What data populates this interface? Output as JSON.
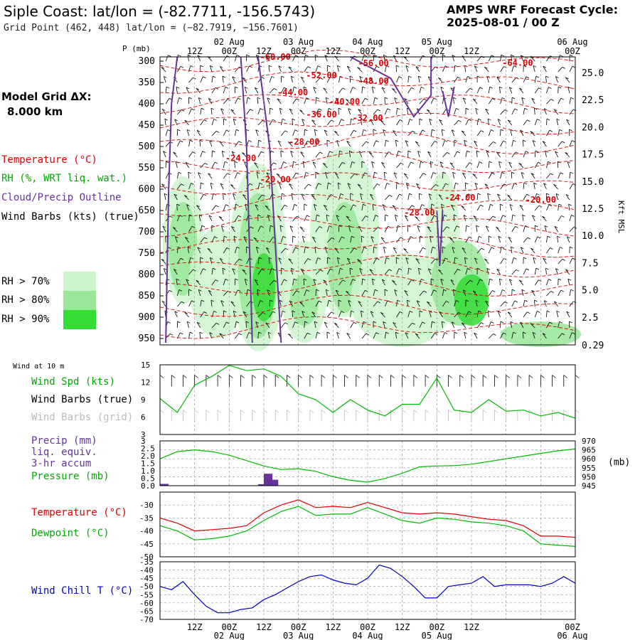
{
  "header": {
    "title": "Siple Coast:  lat/lon = (-82.7711, -156.5743)",
    "grid_point": "Grid Point (462, 448) lat/lon = (−82.7919, −156.7601)",
    "forecast_label": "AMPS WRF Forecast Cycle:",
    "forecast_cycle": "2025-08-01 / 00  Z"
  },
  "legend": {
    "grid_label": "Model Grid ΔX:",
    "grid_value": "8.000 km",
    "temperature": "Temperature (°C)",
    "rh": "RH (%, WRT liq. wat.)",
    "cloud": "Cloud/Precip Outline",
    "wind": "Wind Barbs (kts) (true)",
    "rh70": "RH > 70%",
    "rh80": "RH > 80%",
    "rh90": "RH > 90%"
  },
  "colors": {
    "temp": "#e00000",
    "rh70": "#ccf5cc",
    "rh80": "#99e699",
    "rh90": "#33dd33",
    "cloud": "#663399",
    "wind": "#000000",
    "green": "#00bb00",
    "blue": "#0000cc",
    "grid": "#999999"
  },
  "time_axis": {
    "hour_labels": [
      "12Z",
      "00Z",
      "12Z",
      "00Z",
      "12Z",
      "00Z",
      "12Z",
      "00Z",
      "12Z",
      "00Z"
    ],
    "date_labels": [
      "02 Aug",
      "03 Aug",
      "04 Aug",
      "05 Aug",
      "06 Aug"
    ]
  },
  "panels": {
    "p_unit": "P (mb)",
    "kft_label": "Kft MSL",
    "wind10m_title": "Wind at 10 m",
    "wind_spd": "Wind Spd (kts)",
    "wind_barbs_true": "Wind Barbs (true)",
    "wind_barbs_grid": "Wind Barbs (grid)",
    "precip1": "Precip (mm)",
    "precip2": "liq. equiv.",
    "precip3": "3-hr accum",
    "pressure": "Pressure (mb)",
    "pressure_unit": "(mb)",
    "temperature": "Temperature (°C)",
    "dewpoint": "Dewpoint (°C)",
    "windchill": "Wind Chill T (°C)"
  },
  "chart_data": [
    {
      "type": "heatmap",
      "title": "Vertical cross-section",
      "ylabel": "P (mb)",
      "y2label": "Kft MSL",
      "pressure_ticks": [
        300,
        350,
        400,
        450,
        500,
        550,
        600,
        650,
        700,
        750,
        800,
        850,
        900,
        950
      ],
      "height_ticks": [
        "25.0",
        "22.5",
        "20.0",
        "17.5",
        "15.0",
        "12.5",
        "10.0",
        "7.5",
        "5.0",
        "2.5",
        "0.29"
      ],
      "isotherm_labels": [
        {
          "label": "-60.00",
          "hour": 20,
          "p": 297
        },
        {
          "label": "-56.00",
          "hour": 37,
          "p": 312
        },
        {
          "label": "-64.00",
          "hour": 62,
          "p": 311
        },
        {
          "label": "-52.00",
          "hour": 28,
          "p": 340
        },
        {
          "label": "-48.00",
          "hour": 37,
          "p": 353
        },
        {
          "label": "-44.00",
          "hour": 23,
          "p": 380
        },
        {
          "label": "-40.00",
          "hour": 32,
          "p": 402
        },
        {
          "label": "-36.00",
          "hour": 28,
          "p": 432
        },
        {
          "label": "-32.00",
          "hour": 36,
          "p": 440
        },
        {
          "label": "-28.00",
          "hour": 25,
          "p": 496
        },
        {
          "label": "-24.00",
          "hour": 14,
          "p": 534
        },
        {
          "label": "-20.00",
          "hour": 20,
          "p": 584
        },
        {
          "label": "-24.00",
          "hour": 52,
          "p": 627
        },
        {
          "label": "-20.00",
          "hour": 66,
          "p": 632
        },
        {
          "label": "-28.00",
          "hour": 45,
          "p": 662
        }
      ]
    },
    {
      "type": "line",
      "title": "Wind at 10 m",
      "ylabel": "Wind Spd (kts)",
      "ylim": [
        3,
        15
      ],
      "yticks": [
        3,
        6,
        9,
        12,
        15
      ],
      "x_hours": [
        0,
        3,
        6,
        9,
        12,
        15,
        18,
        21,
        24,
        27,
        30,
        33,
        36,
        39,
        42,
        45,
        48,
        51,
        54,
        57,
        60,
        63,
        66,
        69,
        72
      ],
      "series": [
        {
          "name": "Wind Spd (kts)",
          "values": [
            9.2,
            6.8,
            11.5,
            13.0,
            14.9,
            14.0,
            14.3,
            13.0,
            10.0,
            9.0,
            6.8,
            9.0,
            7.2,
            6.2,
            8.2,
            8.2,
            12.7,
            7.2,
            6.8,
            9.0,
            7.0,
            7.2,
            6.2,
            6.8,
            5.8
          ]
        }
      ]
    },
    {
      "type": "bar",
      "title": "Precip / Pressure",
      "ylabel": "Precip (mm)",
      "ylim": [
        0,
        3
      ],
      "yticks": [
        "0.0",
        "0.5",
        "1.0",
        "1.5",
        "2.0",
        "2.5",
        "3"
      ],
      "y2label": "(mb)",
      "y2lim": [
        945,
        970
      ],
      "y2ticks": [
        945,
        950,
        955,
        960,
        965,
        970
      ],
      "precip_hours": [
        0,
        17,
        18,
        19
      ],
      "precip_values": [
        0.12,
        0.1,
        0.8,
        0.4
      ],
      "pressure_hours": [
        0,
        3,
        6,
        9,
        12,
        15,
        18,
        21,
        24,
        27,
        30,
        33,
        36,
        39,
        42,
        45,
        48,
        51,
        54,
        57,
        60,
        63,
        66,
        69,
        72
      ],
      "pressure_values": [
        960.0,
        964.0,
        965.0,
        964.0,
        962.0,
        959.0,
        956.0,
        954.0,
        954.5,
        953.0,
        950.0,
        948.0,
        947.0,
        949.0,
        952.0,
        955.5,
        956.0,
        956.2,
        957.0,
        958.5,
        960.0,
        961.5,
        963.0,
        964.5,
        965.5
      ]
    },
    {
      "type": "line",
      "title": "Temperature / Dewpoint",
      "ylim": [
        -50,
        -25
      ],
      "yticks": [
        -30,
        -35,
        -40,
        -45,
        -50
      ],
      "x_hours": [
        0,
        3,
        6,
        9,
        12,
        15,
        18,
        21,
        24,
        27,
        30,
        33,
        36,
        39,
        42,
        45,
        48,
        51,
        54,
        57,
        60,
        63,
        66,
        69,
        72
      ],
      "series": [
        {
          "name": "Temperature (°C)",
          "values": [
            -35,
            -37,
            -40,
            -39.5,
            -39,
            -38,
            -33,
            -30,
            -28,
            -31,
            -30.5,
            -31,
            -29,
            -31,
            -33,
            -33.5,
            -33,
            -33.5,
            -34.5,
            -35.5,
            -36,
            -38,
            -42,
            -42,
            -42.5
          ]
        },
        {
          "name": "Dewpoint (°C)",
          "values": [
            -38,
            -40,
            -43.5,
            -43,
            -42,
            -40,
            -36,
            -32.5,
            -30.5,
            -34,
            -33.5,
            -33.5,
            -31,
            -33.5,
            -36,
            -37,
            -35,
            -35.5,
            -36.5,
            -37,
            -38,
            -40,
            -45,
            -45.5,
            -46
          ]
        }
      ]
    },
    {
      "type": "line",
      "title": "Wind Chill",
      "ylabel": "Wind Chill T (°C)",
      "ylim": [
        -70,
        -35
      ],
      "yticks": [
        -35,
        -40,
        -45,
        -50,
        -55,
        -60,
        -65,
        -70
      ],
      "x_hours": [
        0,
        2,
        4,
        6,
        8,
        10,
        12,
        14,
        16,
        18,
        20,
        22,
        24,
        26,
        28,
        30,
        32,
        34,
        36,
        38,
        40,
        42,
        44,
        46,
        48,
        50,
        52,
        54,
        56,
        58,
        60,
        62,
        64,
        66,
        68,
        70,
        72
      ],
      "series": [
        {
          "name": "Wind Chill T (°C)",
          "values": [
            -50,
            -52,
            -47,
            -55,
            -62,
            -66,
            -66,
            -64,
            -63,
            -58,
            -55,
            -51,
            -47,
            -44,
            -43,
            -46,
            -48,
            -49,
            -45,
            -37,
            -39,
            -44,
            -50,
            -57,
            -57,
            -50,
            -49,
            -48,
            -44,
            -50,
            -49,
            -49,
            -49,
            -50,
            -48,
            -44,
            -48
          ]
        }
      ]
    }
  ]
}
